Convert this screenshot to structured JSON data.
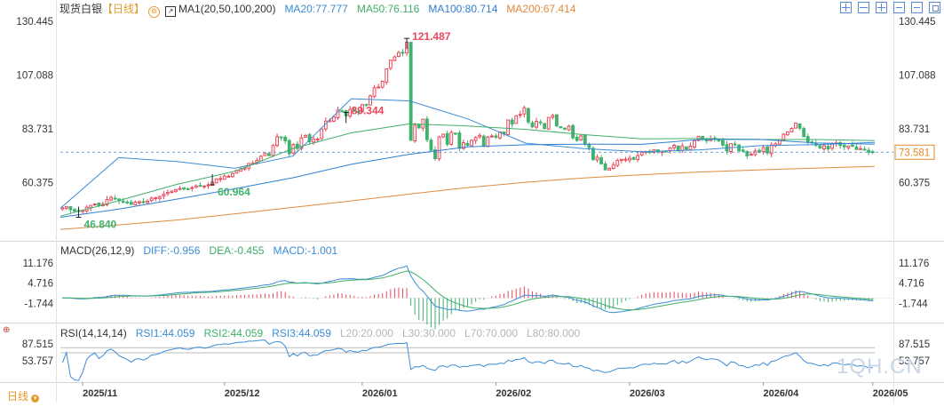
{
  "main_legend": {
    "symbol": "现货白银",
    "period": "【日线】",
    "ma_label": "MA1(20,50,100,200)",
    "ma20": "MA20:77.777",
    "ma50": "MA50:76.116",
    "ma100": "MA100:80.714",
    "ma200": "MA200:67.414"
  },
  "macd_legend": {
    "label": "MACD(26,12,9)",
    "diff": "DIFF:-0.956",
    "dea": "DEA:-0.455",
    "macd": "MACD:-1.001"
  },
  "rsi_legend": {
    "label": "RSI(14,14,14)",
    "rsi1": "RSI1:44.059",
    "rsi2": "RSI2:44.059",
    "rsi3": "RSI3:44.059",
    "l20": "L20:20.000",
    "l30": "L30:30.000",
    "l70": "L70:70.000",
    "l80": "L80:80.000"
  },
  "footer": {
    "period_tab": "日线",
    "watermark": "1QH.CN"
  },
  "colors": {
    "up": "#e9485a",
    "down": "#3fb26c",
    "ma20": "#3b8cd6",
    "ma50": "#3fae6a",
    "ma100": "#2f7fd3",
    "ma200": "#e08a3c",
    "last_price": "#e58a2a"
  },
  "chart_data": [
    {
      "type": "candlestick",
      "title": "现货白银【日线】",
      "y_ticks": [
        "130.445",
        "107.088",
        "83.731",
        "60.375"
      ],
      "ylim": [
        37.0,
        132.0
      ],
      "x_ticks": [
        "2025/11",
        "2025/12",
        "2026/01",
        "2026/02",
        "2026/03",
        "2026/04",
        "2026/05"
      ],
      "last_price": "73.581",
      "annotations": [
        {
          "label": "121.487",
          "kind": "high"
        },
        {
          "label": "46.840",
          "kind": "low"
        },
        {
          "label": "89.344",
          "kind": "high"
        },
        {
          "label": "60.964",
          "kind": "low"
        }
      ],
      "close_series": [
        49.5,
        49.9,
        48.6,
        48.0,
        47.8,
        48.3,
        49.7,
        50.5,
        51.1,
        50.3,
        51.0,
        53.0,
        53.9,
        53.4,
        52.5,
        52.1,
        51.6,
        50.9,
        51.9,
        52.0,
        51.7,
        52.3,
        53.6,
        53.8,
        54.3,
        55.3,
        56.1,
        56.7,
        57.3,
        57.8,
        57.6,
        57.5,
        58.2,
        58.9,
        59.1,
        58.9,
        59.4,
        60.6,
        62.0,
        62.1,
        63.2,
        63.1,
        64.3,
        65.7,
        66.3,
        66.7,
        68.7,
        68.8,
        70.0,
        71.8,
        73.2,
        72.1,
        76.5,
        80.3,
        80.0,
        78.5,
        72.9,
        76.9,
        75.2,
        79.8,
        80.8,
        78.1,
        79.2,
        79.3,
        83.7,
        87.1,
        87.3,
        88.9,
        91.9,
        91.5,
        89.4,
        92.2,
        91.4,
        91.1,
        94.3,
        94.1,
        98.1,
        101.6,
        101.9,
        104.4,
        109.8,
        113.6,
        115.0,
        116.9,
        116.8,
        121.4,
        78.8,
        85.3,
        84.2,
        87.9,
        79.0,
        74.4,
        70.8,
        80.2,
        81.4,
        77.0,
        82.2,
        81.6,
        75.3,
        77.7,
        76.6,
        78.8,
        80.0,
        80.9,
        76.1,
        80.2,
        80.6,
        80.1,
        82.4,
        81.5,
        87.6,
        85.8,
        89.4,
        90.0,
        92.9,
        86.7,
        84.6,
        87.0,
        86.4,
        83.8,
        88.7,
        89.5,
        85.0,
        84.2,
        83.6,
        84.9,
        79.8,
        78.7,
        80.7,
        77.1,
        75.6,
        70.4,
        71.4,
        68.5,
        65.9,
        66.6,
        68.2,
        70.0,
        70.5,
        70.5,
        70.9,
        70.5,
        72.1,
        73.6,
        73.9,
        73.4,
        74.7,
        73.7,
        74.0,
        73.8,
        75.4,
        76.6,
        74.1,
        76.3,
        74.8,
        76.2,
        78.6,
        80.5,
        79.3,
        78.5,
        79.4,
        79.2,
        78.6,
        76.7,
        74.1,
        77.3,
        76.8,
        74.2,
        74.0,
        72.0,
        72.7,
        74.1,
        73.6,
        75.6,
        73.3,
        76.7,
        77.2,
        79.1,
        81.4,
        82.4,
        83.9,
        86.2,
        84.0,
        80.3,
        78.1,
        77.8,
        76.6,
        75.3,
        76.4,
        75.0,
        77.3,
        77.6,
        76.5,
        75.9,
        76.3,
        76.2,
        74.8,
        75.1,
        74.7,
        73.6,
        73.6
      ],
      "ma_series": {
        "MA20": [
          49.2,
          71.2,
          69.5,
          66.6,
          71.9,
          96.8,
          95.9,
          88.1,
          77.5,
          75.1,
          73.8,
          74.6,
          76.4,
          76.9,
          77.8
        ],
        "MA50": [
          45.8,
          52.5,
          59.6,
          65.3,
          75.2,
          82.0,
          85.9,
          85.0,
          83.5,
          81.2,
          79.4,
          79.5,
          79.1,
          79.1,
          78.6
        ],
        "MA100": [
          45.3,
          48.8,
          53.2,
          57.7,
          62.5,
          68.3,
          72.7,
          75.9,
          76.8,
          77.1,
          77.0,
          79.1,
          79.2,
          77.6,
          77.1
        ],
        "MA200": [
          40.0,
          42.0,
          44.1,
          46.8,
          49.6,
          52.4,
          55.4,
          58.2,
          60.5,
          62.4,
          63.8,
          65.0,
          65.9,
          66.7,
          67.4
        ]
      }
    },
    {
      "type": "macd",
      "title": "MACD(26,12,9)",
      "y_ticks": [
        "11.176",
        "4.716",
        "-1.744"
      ],
      "ylim": [
        -7.0,
        14.0
      ],
      "series": [
        {
          "name": "DIFF",
          "value": -0.956
        },
        {
          "name": "DEA",
          "value": -0.455
        },
        {
          "name": "MACD",
          "value": -1.001
        }
      ]
    },
    {
      "type": "line",
      "title": "RSI(14,14,14)",
      "y_ticks": [
        "87.515",
        "53.757"
      ],
      "ylim": [
        15,
        100
      ],
      "series": [
        {
          "name": "RSI1",
          "value": 44.059
        },
        {
          "name": "RSI2",
          "value": 44.059
        },
        {
          "name": "RSI3",
          "value": 44.059
        }
      ]
    }
  ]
}
